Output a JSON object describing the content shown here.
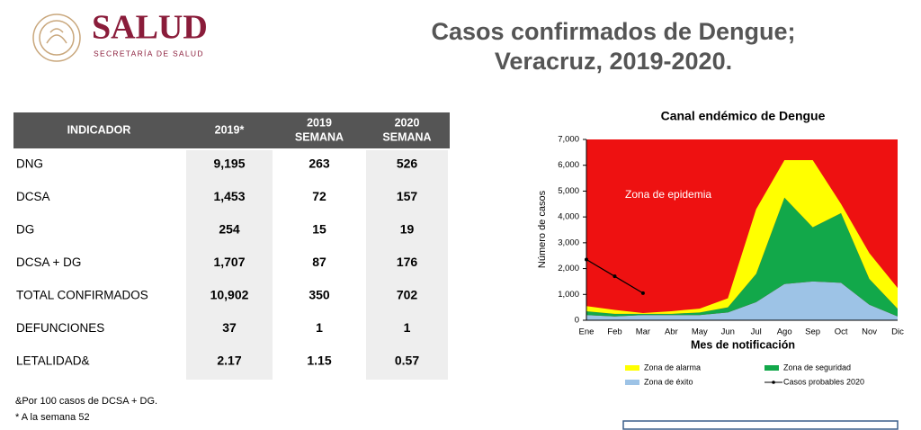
{
  "header": {
    "brand": "SALUD",
    "subbrand": "SECRETARÍA DE SALUD",
    "title": [
      "Casos confirmados de Dengue;",
      "Veracruz, 2019-2020."
    ]
  },
  "table": {
    "columns": [
      [
        "INDICADOR"
      ],
      [
        "2019*"
      ],
      [
        "2019",
        "SEMANA"
      ],
      [
        "2020",
        "SEMANA"
      ]
    ],
    "rows": [
      [
        "DNG",
        "9,195",
        "263",
        "526"
      ],
      [
        "DCSA",
        "1,453",
        "72",
        "157"
      ],
      [
        "DG",
        "254",
        "15",
        "19"
      ],
      [
        "DCSA + DG",
        "1,707",
        "87",
        "176"
      ],
      [
        "TOTAL CONFIRMADOS",
        "10,902",
        "350",
        "702"
      ],
      [
        "DEFUNCIONES",
        "37",
        "1",
        "1"
      ],
      [
        "LETALIDAD&",
        "2.17",
        "1.15",
        "0.57"
      ]
    ],
    "footnotes": [
      "&Por 100 casos de DCSA + DG.",
      "* A la semana 52"
    ]
  },
  "chart_data": {
    "type": "area",
    "title": "Canal endémico de Dengue",
    "x_label": "Mes de notificación",
    "y_label": "Número de casos",
    "annotation": "Zona de epidemia",
    "plot_background": "#ee1111",
    "categories": [
      "Ene",
      "Feb",
      "Mar",
      "Abr",
      "May",
      "Jun",
      "Jul",
      "Ago",
      "Sep",
      "Oct",
      "Nov",
      "Dic"
    ],
    "ylim": [
      0,
      7000
    ],
    "yticks": [
      0,
      {
        "value": 1000,
        "label": "1,000"
      },
      {
        "value": 2000,
        "label": "2,000"
      },
      {
        "value": 3000,
        "label": "3,000"
      },
      {
        "value": 4000,
        "label": "4,000"
      },
      {
        "value": 5000,
        "label": "5,000"
      },
      {
        "value": 6000,
        "label": "6,000"
      },
      {
        "value": 7000,
        "label": "7,000"
      }
    ],
    "series": [
      {
        "name": "Zona de éxito",
        "color": "#9dc3e6",
        "values": [
          200,
          150,
          200,
          200,
          200,
          300,
          700,
          1400,
          1500,
          1450,
          600,
          150
        ]
      },
      {
        "name": "Zona de seguridad",
        "color": "#12a84a",
        "values": [
          150,
          100,
          50,
          50,
          100,
          200,
          1100,
          3350,
          2100,
          2700,
          1000,
          300
        ]
      },
      {
        "name": "Zona de alarma",
        "color": "#ffff00",
        "values": [
          200,
          150,
          30,
          100,
          150,
          350,
          2500,
          1450,
          2600,
          350,
          1000,
          800
        ]
      },
      {
        "name": "Casos probables 2020",
        "color": "#000000",
        "type": "line",
        "values": [
          2350,
          1700,
          1050,
          null,
          null,
          null,
          null,
          null,
          null,
          null,
          null,
          null
        ]
      }
    ]
  }
}
